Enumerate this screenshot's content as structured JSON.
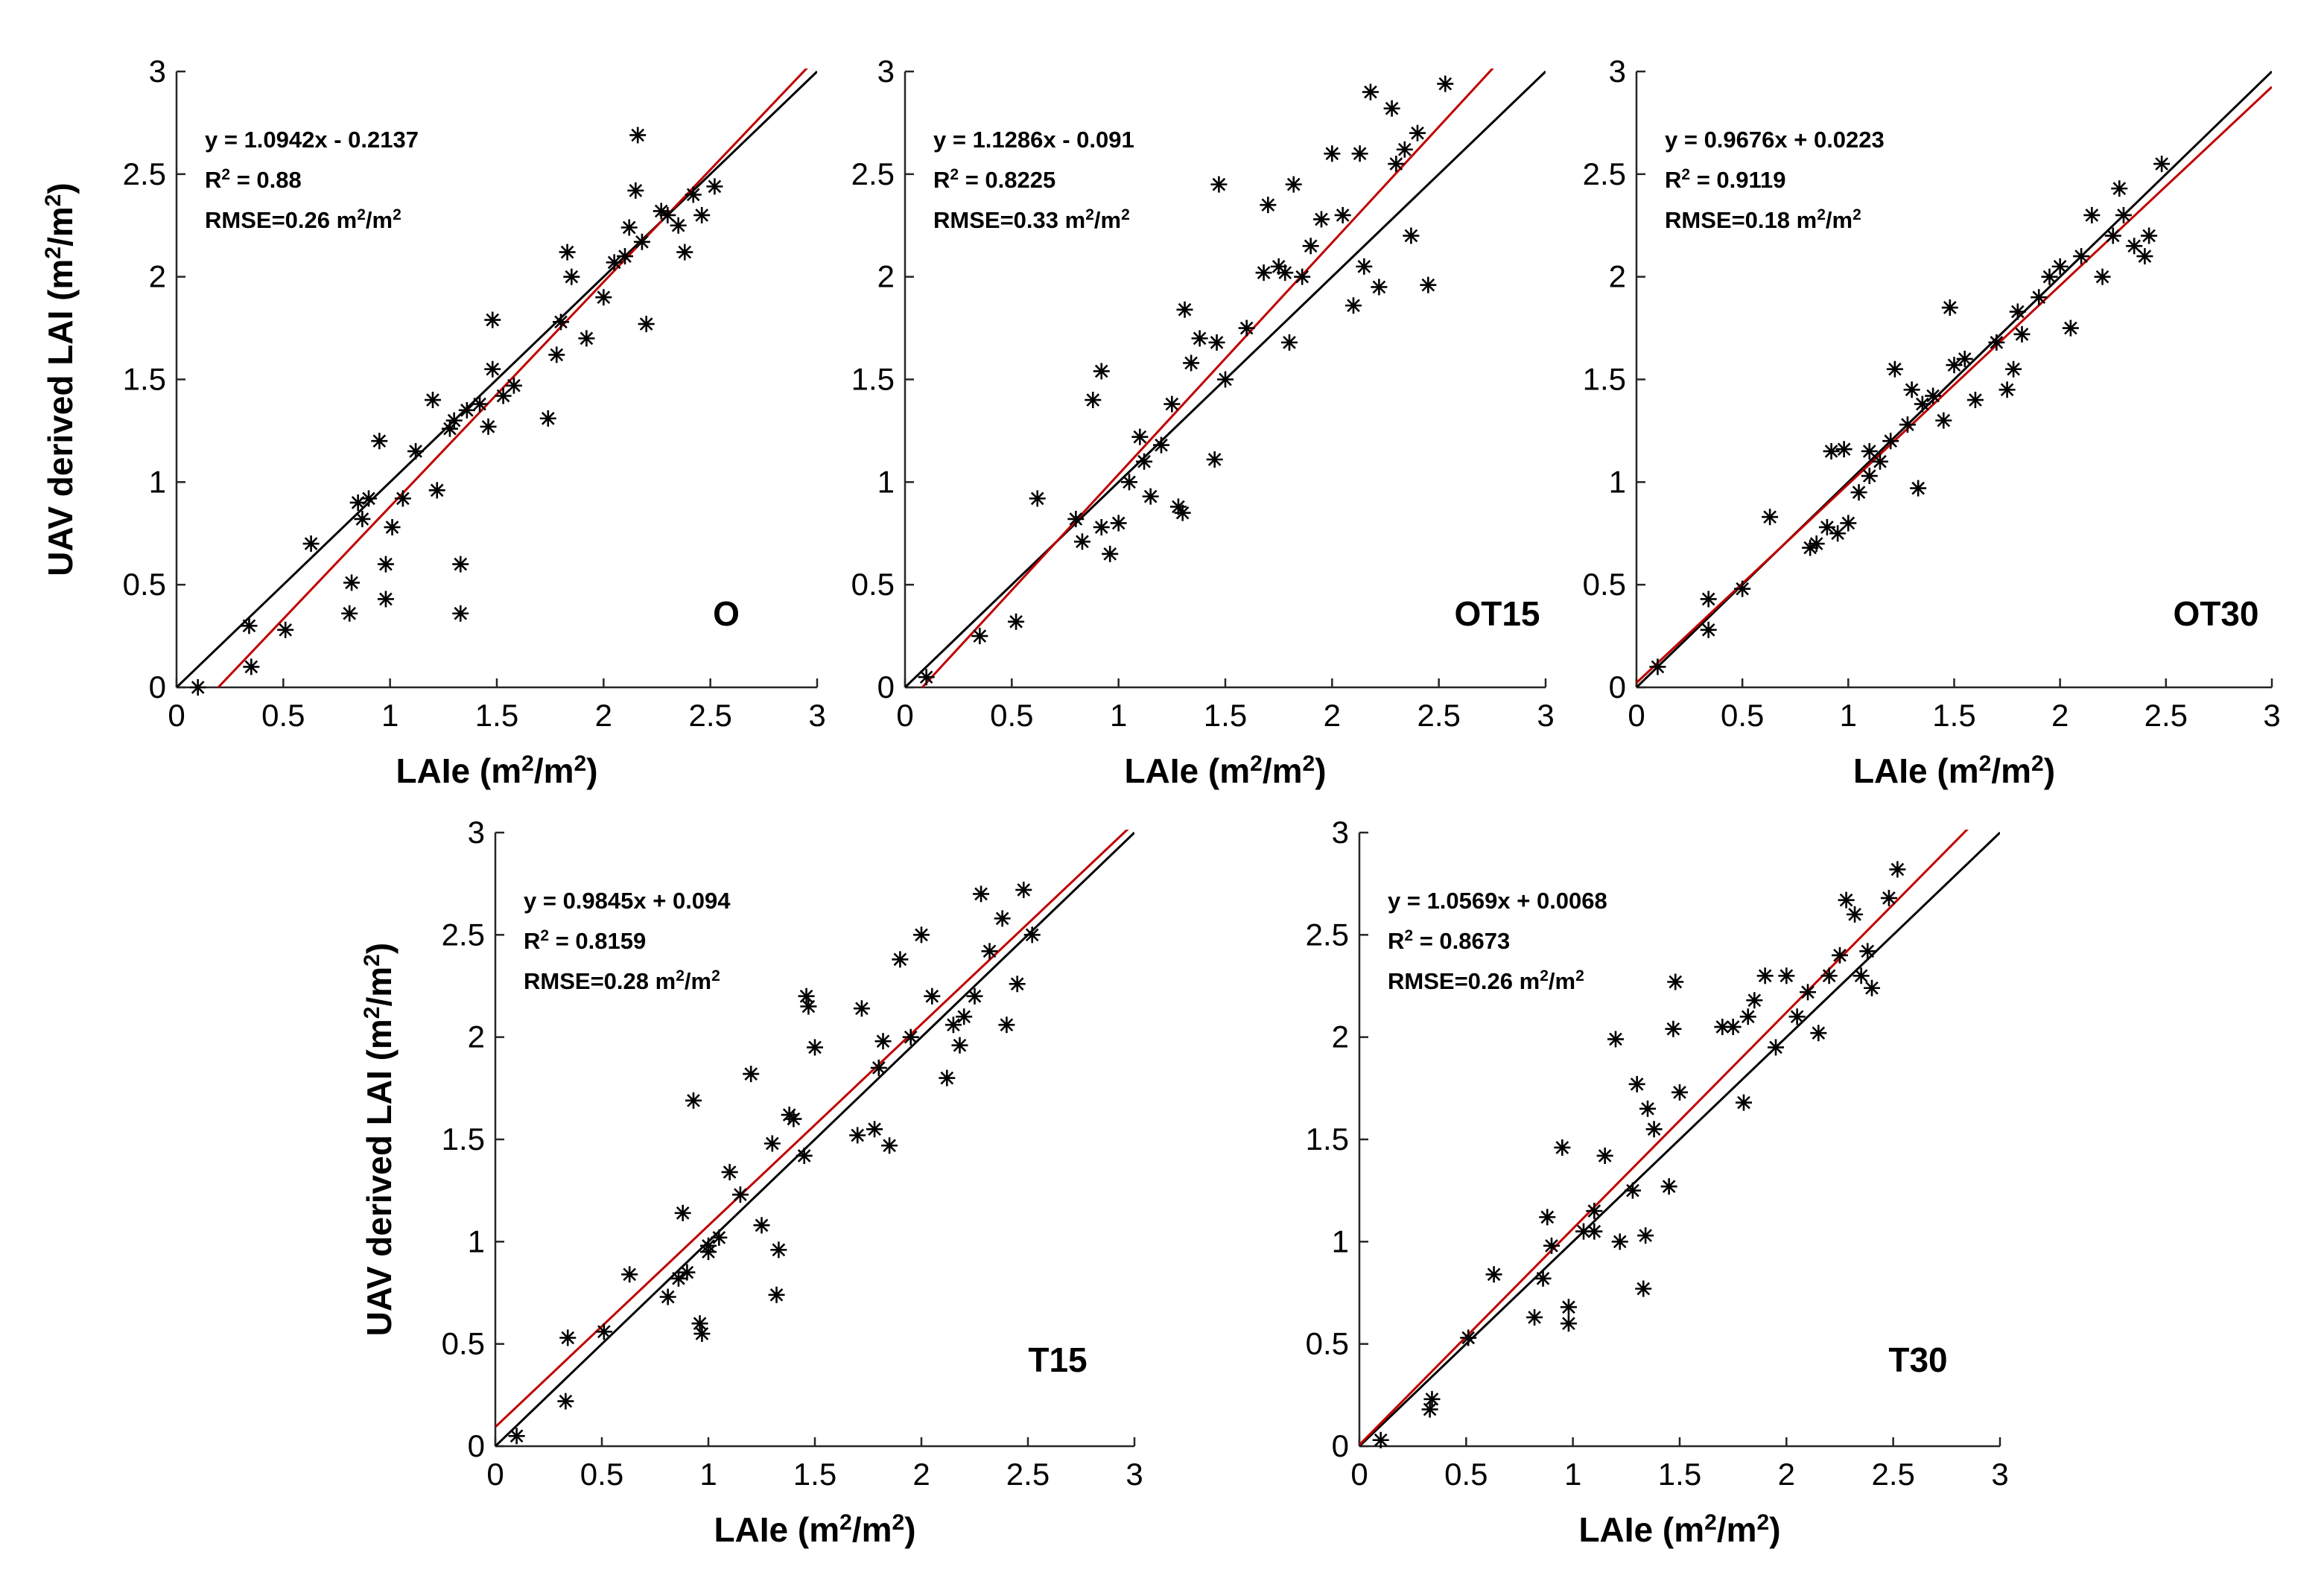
{
  "chart_data": [
    {
      "type": "scatter",
      "panel": "O",
      "xlabel": "LAIe (m2/m2)",
      "ylabel": "UAV derived LAI (m2/m2)",
      "xlim": [
        0,
        3
      ],
      "ylim": [
        0,
        3
      ],
      "xticks": [
        "0",
        "0.5",
        "1",
        "1.5",
        "2",
        "2.5",
        "3"
      ],
      "yticks": [
        "0",
        "0.5",
        "1",
        "1.5",
        "2",
        "2.5",
        "3"
      ],
      "equation": "y = 1.0942x - 0.2137",
      "r2_value": "0.88",
      "rmse_value": "0.26",
      "fit_line": {
        "slope": 1.0942,
        "intercept": -0.2137,
        "color": "#c00000"
      },
      "reference_line": {
        "slope": 1,
        "intercept": 0,
        "color": "#000000"
      },
      "points": [
        [
          0.1,
          0.0
        ],
        [
          0.34,
          0.3
        ],
        [
          0.35,
          0.1
        ],
        [
          0.51,
          0.28
        ],
        [
          0.63,
          0.7
        ],
        [
          0.81,
          0.36
        ],
        [
          0.82,
          0.51
        ],
        [
          0.87,
          0.82
        ],
        [
          0.9,
          0.92
        ],
        [
          0.95,
          1.2
        ],
        [
          0.98,
          0.6
        ],
        [
          0.98,
          0.43
        ],
        [
          1.06,
          0.92
        ],
        [
          1.12,
          1.15
        ],
        [
          1.2,
          1.4
        ],
        [
          1.22,
          0.96
        ],
        [
          1.28,
          1.26
        ],
        [
          1.3,
          1.3
        ],
        [
          1.33,
          0.6
        ],
        [
          1.33,
          0.36
        ],
        [
          1.36,
          1.35
        ],
        [
          1.42,
          1.38
        ],
        [
          1.46,
          1.27
        ],
        [
          1.48,
          1.55
        ],
        [
          1.48,
          1.79
        ],
        [
          1.53,
          1.42
        ],
        [
          1.58,
          1.47
        ],
        [
          1.74,
          1.31
        ],
        [
          1.78,
          1.62
        ],
        [
          1.8,
          1.78
        ],
        [
          1.83,
          2.12
        ],
        [
          1.85,
          2.0
        ],
        [
          1.92,
          1.7
        ],
        [
          2.0,
          1.9
        ],
        [
          2.05,
          2.07
        ],
        [
          2.1,
          2.1
        ],
        [
          2.12,
          2.24
        ],
        [
          2.15,
          2.42
        ],
        [
          2.16,
          2.69
        ],
        [
          2.18,
          2.17
        ],
        [
          2.2,
          1.77
        ],
        [
          2.27,
          2.32
        ],
        [
          2.3,
          2.3
        ],
        [
          2.35,
          2.25
        ],
        [
          2.38,
          2.12
        ],
        [
          2.42,
          2.4
        ],
        [
          2.46,
          2.3
        ],
        [
          2.52,
          2.44
        ],
        [
          0.85,
          0.9
        ],
        [
          1.01,
          0.78
        ]
      ]
    },
    {
      "type": "scatter",
      "panel": "OT15",
      "xlabel": "LAIe (m2/m2)",
      "ylabel": "",
      "xlim": [
        0,
        3
      ],
      "ylim": [
        0,
        3
      ],
      "xticks": [
        "0",
        "0.5",
        "1",
        "1.5",
        "2",
        "2.5",
        "3"
      ],
      "yticks": [
        "0",
        "0.5",
        "1",
        "1.5",
        "2",
        "2.5",
        "3"
      ],
      "equation": "y = 1.1286x - 0.091",
      "r2_value": "0.8225",
      "rmse_value": "0.33",
      "fit_line": {
        "slope": 1.1286,
        "intercept": -0.091,
        "color": "#c00000"
      },
      "reference_line": {
        "slope": 1,
        "intercept": 0,
        "color": "#000000"
      },
      "points": [
        [
          0.1,
          0.05
        ],
        [
          0.35,
          0.25
        ],
        [
          0.52,
          0.32
        ],
        [
          0.62,
          0.92
        ],
        [
          0.8,
          0.82
        ],
        [
          0.83,
          0.71
        ],
        [
          0.88,
          1.4
        ],
        [
          0.92,
          0.78
        ],
        [
          0.92,
          1.54
        ],
        [
          0.96,
          0.65
        ],
        [
          1.0,
          0.8
        ],
        [
          1.05,
          1.0
        ],
        [
          1.1,
          1.22
        ],
        [
          1.15,
          0.93
        ],
        [
          1.2,
          1.18
        ],
        [
          1.25,
          1.38
        ],
        [
          1.28,
          0.88
        ],
        [
          1.3,
          0.85
        ],
        [
          1.31,
          1.84
        ],
        [
          1.34,
          1.58
        ],
        [
          1.38,
          1.7
        ],
        [
          1.45,
          1.11
        ],
        [
          1.46,
          1.68
        ],
        [
          1.5,
          1.5
        ],
        [
          1.47,
          2.45
        ],
        [
          1.6,
          1.75
        ],
        [
          1.7,
          2.35
        ],
        [
          1.75,
          2.05
        ],
        [
          1.78,
          2.02
        ],
        [
          1.8,
          1.68
        ],
        [
          1.82,
          2.45
        ],
        [
          1.86,
          2.0
        ],
        [
          1.9,
          2.15
        ],
        [
          1.95,
          2.28
        ],
        [
          2.0,
          2.6
        ],
        [
          2.05,
          2.3
        ],
        [
          2.1,
          1.86
        ],
        [
          2.13,
          2.6
        ],
        [
          2.15,
          2.05
        ],
        [
          2.18,
          2.9
        ],
        [
          2.22,
          1.95
        ],
        [
          2.28,
          2.82
        ],
        [
          2.3,
          2.55
        ],
        [
          2.34,
          2.62
        ],
        [
          2.37,
          2.2
        ],
        [
          2.4,
          2.7
        ],
        [
          2.45,
          1.96
        ],
        [
          2.53,
          2.94
        ],
        [
          1.68,
          2.02
        ],
        [
          1.12,
          1.1
        ]
      ]
    },
    {
      "type": "scatter",
      "panel": "OT30",
      "xlabel": "LAIe (m2/m2)",
      "ylabel": "",
      "xlim": [
        0,
        3
      ],
      "ylim": [
        0,
        3
      ],
      "xticks": [
        "0",
        "0.5",
        "1",
        "1.5",
        "2",
        "2.5",
        "3"
      ],
      "yticks": [
        "0",
        "0.5",
        "1",
        "1.5",
        "2",
        "2.5",
        "3"
      ],
      "equation": "y = 0.9676x + 0.0223",
      "r2_value": "0.9119",
      "rmse_value": "0.18",
      "fit_line": {
        "slope": 0.9676,
        "intercept": 0.0223,
        "color": "#c00000"
      },
      "reference_line": {
        "slope": 1,
        "intercept": 0,
        "color": "#000000"
      },
      "points": [
        [
          0.1,
          0.1
        ],
        [
          0.34,
          0.28
        ],
        [
          0.34,
          0.43
        ],
        [
          0.5,
          0.48
        ],
        [
          0.63,
          0.83
        ],
        [
          0.82,
          0.68
        ],
        [
          0.85,
          0.7
        ],
        [
          0.9,
          0.78
        ],
        [
          0.92,
          1.15
        ],
        [
          0.95,
          0.75
        ],
        [
          0.98,
          1.16
        ],
        [
          1.0,
          0.8
        ],
        [
          1.05,
          0.95
        ],
        [
          1.1,
          1.03
        ],
        [
          1.15,
          1.1
        ],
        [
          1.2,
          1.2
        ],
        [
          1.22,
          1.55
        ],
        [
          1.28,
          1.28
        ],
        [
          1.3,
          1.45
        ],
        [
          1.33,
          0.97
        ],
        [
          1.35,
          1.38
        ],
        [
          1.4,
          1.42
        ],
        [
          1.45,
          1.3
        ],
        [
          1.48,
          1.85
        ],
        [
          1.5,
          1.57
        ],
        [
          1.55,
          1.6
        ],
        [
          1.7,
          1.68
        ],
        [
          1.75,
          1.45
        ],
        [
          1.78,
          1.55
        ],
        [
          1.8,
          1.83
        ],
        [
          1.82,
          1.72
        ],
        [
          1.9,
          1.9
        ],
        [
          1.95,
          2.0
        ],
        [
          2.0,
          2.05
        ],
        [
          2.05,
          1.75
        ],
        [
          2.1,
          2.1
        ],
        [
          2.15,
          2.3
        ],
        [
          2.2,
          2.0
        ],
        [
          2.25,
          2.2
        ],
        [
          2.28,
          2.43
        ],
        [
          2.3,
          2.3
        ],
        [
          2.35,
          2.15
        ],
        [
          2.4,
          2.1
        ],
        [
          2.42,
          2.2
        ],
        [
          2.48,
          2.55
        ],
        [
          1.6,
          1.4
        ],
        [
          1.1,
          1.15
        ]
      ]
    },
    {
      "type": "scatter",
      "panel": "T15",
      "xlabel": "LAIe (m2/m2)",
      "ylabel": "UAV derived LAI (m2/m2)",
      "xlim": [
        0,
        3
      ],
      "ylim": [
        0,
        3
      ],
      "xticks": [
        "0",
        "0.5",
        "1",
        "1.5",
        "2",
        "2.5",
        "3"
      ],
      "yticks": [
        "0",
        "0.5",
        "1",
        "1.5",
        "2",
        "2.5",
        "3"
      ],
      "equation": "y = 0.9845x + 0.094",
      "r2_value": "0.8159",
      "rmse_value": "0.28",
      "fit_line": {
        "slope": 0.9845,
        "intercept": 0.094,
        "color": "#c00000"
      },
      "reference_line": {
        "slope": 1,
        "intercept": 0,
        "color": "#000000"
      },
      "points": [
        [
          0.1,
          0.05
        ],
        [
          0.33,
          0.22
        ],
        [
          0.34,
          0.53
        ],
        [
          0.51,
          0.56
        ],
        [
          0.63,
          0.84
        ],
        [
          0.81,
          0.73
        ],
        [
          0.86,
          0.82
        ],
        [
          0.88,
          1.14
        ],
        [
          0.9,
          0.85
        ],
        [
          0.93,
          1.69
        ],
        [
          0.96,
          0.6
        ],
        [
          0.97,
          0.55
        ],
        [
          1.0,
          0.98
        ],
        [
          1.05,
          1.02
        ],
        [
          1.1,
          1.34
        ],
        [
          1.15,
          1.23
        ],
        [
          1.2,
          1.82
        ],
        [
          1.25,
          1.08
        ],
        [
          1.3,
          1.48
        ],
        [
          1.33,
          0.96
        ],
        [
          1.32,
          0.74
        ],
        [
          1.38,
          1.62
        ],
        [
          1.45,
          1.42
        ],
        [
          1.46,
          2.2
        ],
        [
          1.47,
          2.15
        ],
        [
          1.5,
          1.95
        ],
        [
          1.7,
          1.52
        ],
        [
          1.72,
          2.14
        ],
        [
          1.78,
          1.55
        ],
        [
          1.8,
          1.85
        ],
        [
          1.82,
          1.98
        ],
        [
          1.85,
          1.47
        ],
        [
          1.9,
          2.38
        ],
        [
          1.95,
          2.0
        ],
        [
          2.0,
          2.5
        ],
        [
          2.05,
          2.2
        ],
        [
          2.12,
          1.8
        ],
        [
          2.15,
          2.06
        ],
        [
          2.18,
          1.96
        ],
        [
          2.2,
          2.1
        ],
        [
          2.25,
          2.2
        ],
        [
          2.28,
          2.7
        ],
        [
          2.32,
          2.42
        ],
        [
          2.38,
          2.58
        ],
        [
          2.4,
          2.06
        ],
        [
          2.45,
          2.26
        ],
        [
          2.48,
          2.72
        ],
        [
          2.52,
          2.5
        ],
        [
          1.4,
          1.6
        ],
        [
          1.0,
          0.95
        ]
      ]
    },
    {
      "type": "scatter",
      "panel": "T30",
      "xlabel": "LAIe (m2/m2)",
      "ylabel": "",
      "xlim": [
        0,
        3
      ],
      "ylim": [
        0,
        3
      ],
      "xticks": [
        "0",
        "0.5",
        "1",
        "1.5",
        "2",
        "2.5",
        "3"
      ],
      "yticks": [
        "0",
        "0.5",
        "1",
        "1.5",
        "2",
        "2.5",
        "3"
      ],
      "equation": "y = 1.0569x + 0.0068",
      "r2_value": "0.8673",
      "rmse_value": "0.26",
      "fit_line": {
        "slope": 1.0569,
        "intercept": 0.0068,
        "color": "#c00000"
      },
      "reference_line": {
        "slope": 1,
        "intercept": 0,
        "color": "#000000"
      },
      "points": [
        [
          0.1,
          0.03
        ],
        [
          0.33,
          0.18
        ],
        [
          0.34,
          0.23
        ],
        [
          0.51,
          0.53
        ],
        [
          0.63,
          0.84
        ],
        [
          0.82,
          0.63
        ],
        [
          0.86,
          0.82
        ],
        [
          0.88,
          1.12
        ],
        [
          0.9,
          0.98
        ],
        [
          0.95,
          1.46
        ],
        [
          0.98,
          0.6
        ],
        [
          0.98,
          0.68
        ],
        [
          1.05,
          1.05
        ],
        [
          1.1,
          1.15
        ],
        [
          1.15,
          1.42
        ],
        [
          1.2,
          1.99
        ],
        [
          1.22,
          1.0
        ],
        [
          1.28,
          1.25
        ],
        [
          1.3,
          1.77
        ],
        [
          1.33,
          0.77
        ],
        [
          1.34,
          1.03
        ],
        [
          1.38,
          1.55
        ],
        [
          1.45,
          1.27
        ],
        [
          1.47,
          2.04
        ],
        [
          1.48,
          2.27
        ],
        [
          1.5,
          1.73
        ],
        [
          1.7,
          2.05
        ],
        [
          1.75,
          2.05
        ],
        [
          1.8,
          1.68
        ],
        [
          1.82,
          2.1
        ],
        [
          1.85,
          2.18
        ],
        [
          1.9,
          2.3
        ],
        [
          1.95,
          1.95
        ],
        [
          2.0,
          2.3
        ],
        [
          2.05,
          2.1
        ],
        [
          2.1,
          2.22
        ],
        [
          2.15,
          2.02
        ],
        [
          2.2,
          2.3
        ],
        [
          2.25,
          2.4
        ],
        [
          2.28,
          2.67
        ],
        [
          2.32,
          2.6
        ],
        [
          2.35,
          2.3
        ],
        [
          2.38,
          2.42
        ],
        [
          2.4,
          2.24
        ],
        [
          2.48,
          2.68
        ],
        [
          2.52,
          2.82
        ],
        [
          1.35,
          1.65
        ],
        [
          1.1,
          1.05
        ]
      ]
    }
  ]
}
